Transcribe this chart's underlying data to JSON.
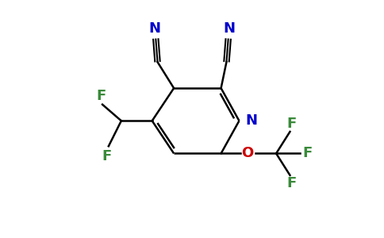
{
  "background_color": "#ffffff",
  "bond_color": "#000000",
  "nitrogen_color": "#0000cc",
  "oxygen_color": "#cc0000",
  "fluorine_color": "#3a8a3a",
  "figsize": [
    4.84,
    3.0
  ],
  "dpi": 100,
  "xlim": [
    0,
    10
  ],
  "ylim": [
    0,
    6.5
  ]
}
